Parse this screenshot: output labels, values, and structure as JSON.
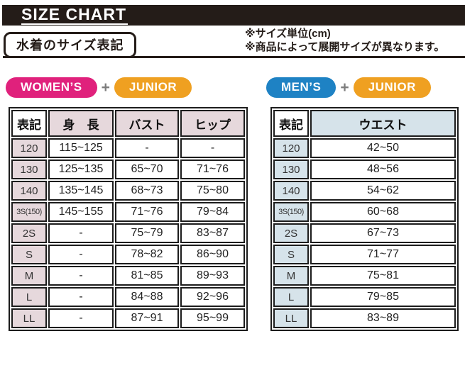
{
  "header": {
    "title": "SIZE CHART"
  },
  "section": {
    "label": "水着のサイズ表記",
    "notes": [
      "※サイズ単位(cm)",
      "※商品によって展開サイズが異なります。"
    ]
  },
  "badges": {
    "womens": "WOMEN’S",
    "mens": "MEN’S",
    "junior": "JUNIOR",
    "plus": "+"
  },
  "colors": {
    "title_bar_black": "#241c18",
    "womens_pink": "#e0217c",
    "mens_blue": "#1e82c4",
    "junior_orange": "#efa021",
    "plus_gray": "#7d7d7d",
    "womens_table_tint": "#e6d8dc",
    "mens_table_tint": "#d6e3ea",
    "cell_border": "#1c1c1c"
  },
  "tables": {
    "womens": {
      "headers": [
        "表記",
        "身　長",
        "バスト",
        "ヒップ"
      ],
      "rows": [
        [
          "120",
          "115~125",
          "-",
          "-"
        ],
        [
          "130",
          "125~135",
          "65~70",
          "71~76"
        ],
        [
          "140",
          "135~145",
          "68~73",
          "75~80"
        ],
        [
          "3S(150)",
          "145~155",
          "71~76",
          "79~84"
        ],
        [
          "2S",
          "-",
          "75~79",
          "83~87"
        ],
        [
          "S",
          "-",
          "78~82",
          "86~90"
        ],
        [
          "M",
          "-",
          "81~85",
          "89~93"
        ],
        [
          "L",
          "-",
          "84~88",
          "92~96"
        ],
        [
          "LL",
          "-",
          "87~91",
          "95~99"
        ]
      ]
    },
    "mens": {
      "headers": [
        "表記",
        "ウエスト"
      ],
      "rows": [
        [
          "120",
          "42~50"
        ],
        [
          "130",
          "48~56"
        ],
        [
          "140",
          "54~62"
        ],
        [
          "3S(150)",
          "60~68"
        ],
        [
          "2S",
          "67~73"
        ],
        [
          "S",
          "71~77"
        ],
        [
          "M",
          "75~81"
        ],
        [
          "L",
          "79~85"
        ],
        [
          "LL",
          "83~89"
        ]
      ]
    }
  }
}
